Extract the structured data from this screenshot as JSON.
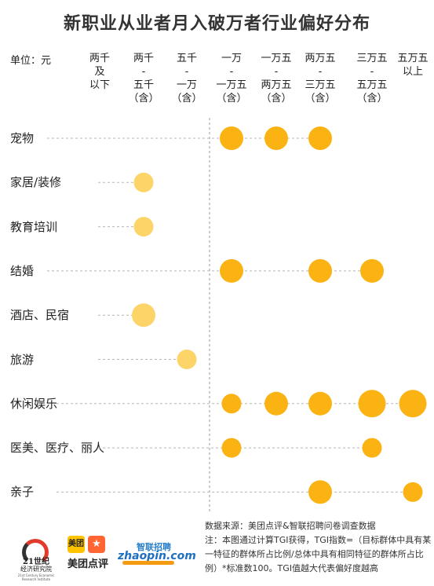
{
  "title": "新职业从业者月入破万者行业偏好分布",
  "unit_label": "单位：元",
  "chart_data": {
    "type": "scatter",
    "title": "新职业从业者月入破万者行业偏好分布",
    "unit": "单位：元",
    "columns": [
      "两千\n及\n以下",
      "两千\n-\n五千\n（含）",
      "五千\n-\n一万\n（含）",
      "一万\n-\n一万五\n（含）",
      "一万五\n-\n两万五\n（含）",
      "两万五\n-\n三万五\n（含）",
      "三万五\n-\n五万五\n（含）",
      "五万五\n以上"
    ],
    "rows": [
      {
        "label": "宠物",
        "points": [
          {
            "col": 3,
            "size": 2
          },
          {
            "col": 4,
            "size": 2
          },
          {
            "col": 5,
            "size": 2
          }
        ]
      },
      {
        "label": "家居/装修",
        "points": [
          {
            "col": 1,
            "size": 1
          }
        ]
      },
      {
        "label": "教育培训",
        "points": [
          {
            "col": 1,
            "size": 1
          }
        ]
      },
      {
        "label": "结婚",
        "points": [
          {
            "col": 3,
            "size": 2
          },
          {
            "col": 5,
            "size": 2
          },
          {
            "col": 6,
            "size": 2
          }
        ]
      },
      {
        "label": "酒店、民宿",
        "points": [
          {
            "col": 1,
            "size": 2
          }
        ]
      },
      {
        "label": "旅游",
        "points": [
          {
            "col": 2,
            "size": 1
          }
        ]
      },
      {
        "label": "休闲娱乐",
        "points": [
          {
            "col": 3,
            "size": 1
          },
          {
            "col": 4,
            "size": 2
          },
          {
            "col": 5,
            "size": 2
          },
          {
            "col": 6,
            "size": 3
          },
          {
            "col": 7,
            "size": 3
          }
        ]
      },
      {
        "label": "医美、医疗、丽人",
        "points": [
          {
            "col": 3,
            "size": 1
          },
          {
            "col": 6,
            "size": 1
          }
        ]
      },
      {
        "label": "亲子",
        "points": [
          {
            "col": 5,
            "size": 2
          },
          {
            "col": 7,
            "size": 1
          }
        ]
      }
    ],
    "colors": {
      "dark": "#fbb313",
      "light": "#fdd468",
      "line": "#b5b5b5"
    }
  },
  "footer": {
    "source": "数据来源：美团点评&智联招聘问卷调查数据",
    "note": "注：本图通过计算TGI获得，TGI指数=（目标群体中具有某一特征的群体所占比例/总体中具有相同特征的群体所占比例）*标准数100。TGI值越大代表偏好度越高"
  },
  "logos": {
    "logo_21_main": "21世纪",
    "logo_21_sub": "经济研究院",
    "logo_21_en": "21st Century Economic Research Institute",
    "meituan_box": "美团",
    "meituan_name": "美团点评",
    "zhilian_cn": "智联招聘",
    "zhilian_en": "zhaopin.com"
  }
}
